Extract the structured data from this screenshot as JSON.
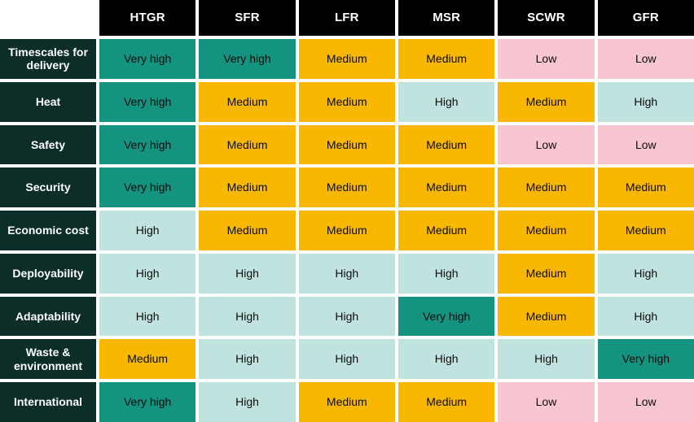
{
  "chart_data": {
    "type": "heatmap",
    "columns": [
      "HTGR",
      "SFR",
      "LFR",
      "MSR",
      "SCWR",
      "GFR"
    ],
    "rows": [
      "Timescales for delivery",
      "Heat",
      "Safety",
      "Security",
      "Economic cost",
      "Deployability",
      "Adaptability",
      "Waste & environment",
      "International"
    ],
    "scale": [
      "Low",
      "Medium",
      "High",
      "Very high"
    ],
    "values": [
      [
        "Very high",
        "Very high",
        "Medium",
        "Medium",
        "Low",
        "Low"
      ],
      [
        "Very high",
        "Medium",
        "Medium",
        "High",
        "Medium",
        "High"
      ],
      [
        "Very high",
        "Medium",
        "Medium",
        "Medium",
        "Low",
        "Low"
      ],
      [
        "Very high",
        "Medium",
        "Medium",
        "Medium",
        "Medium",
        "Medium"
      ],
      [
        "High",
        "Medium",
        "Medium",
        "Medium",
        "Medium",
        "Medium"
      ],
      [
        "High",
        "High",
        "High",
        "High",
        "Medium",
        "High"
      ],
      [
        "High",
        "High",
        "High",
        "Very high",
        "Medium",
        "High"
      ],
      [
        "Medium",
        "High",
        "High",
        "High",
        "High",
        "Very high"
      ],
      [
        "Very high",
        "High",
        "Medium",
        "Medium",
        "Low",
        "Low"
      ]
    ]
  },
  "colors": {
    "rating": {
      "Very high": "#149480",
      "High": "#c1e3e0",
      "Medium": "#fab700",
      "Low": "#f8c6d0"
    },
    "header_bg": "#000000",
    "row_label_bg": "#0c2d28",
    "header_text": "#ffffff",
    "cell_text": "#0b0c0c",
    "grid_gap": "#ffffff"
  }
}
